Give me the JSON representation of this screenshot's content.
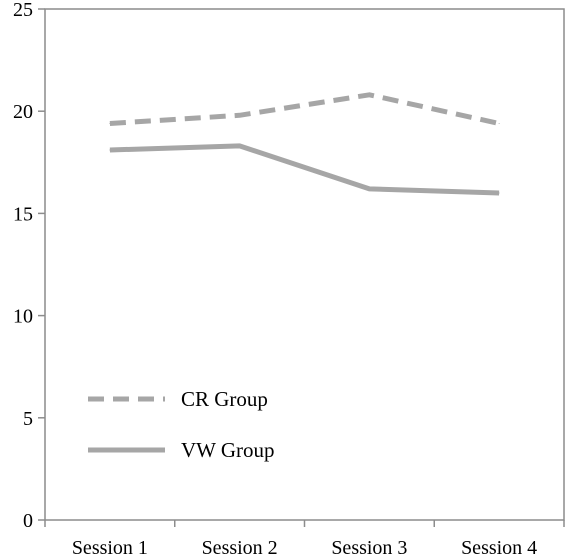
{
  "chart_data": {
    "type": "line",
    "categories": [
      "Session 1",
      "Session 2",
      "Session 3",
      "Session 4"
    ],
    "ylim": [
      0,
      25
    ],
    "yticks": [
      0,
      5,
      10,
      15,
      20,
      25
    ],
    "grid": false,
    "legend_position": "bottom-left",
    "series": [
      {
        "name": "CR Group",
        "values": [
          19.4,
          19.8,
          20.8,
          19.4
        ],
        "color": "#a6a6a6",
        "style": "dashed"
      },
      {
        "name": "VW Group",
        "values": [
          18.1,
          18.3,
          16.2,
          16.0
        ],
        "color": "#a6a6a6",
        "style": "solid"
      }
    ]
  }
}
